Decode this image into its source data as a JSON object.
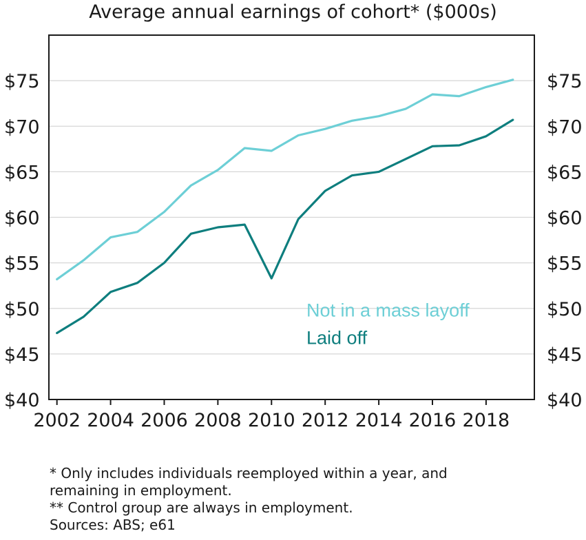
{
  "chart_data": {
    "type": "line",
    "title": "Average annual earnings of cohort* ($000s)",
    "xlabel": "",
    "ylabel": "",
    "x": [
      2002,
      2003,
      2004,
      2005,
      2006,
      2007,
      2008,
      2009,
      2010,
      2011,
      2012,
      2013,
      2014,
      2015,
      2016,
      2017,
      2018,
      2019
    ],
    "xlim": [
      2001.7,
      2019.8
    ],
    "ylim": [
      40,
      80
    ],
    "x_ticks": [
      {
        "value": 2002,
        "label": "2002"
      },
      {
        "value": 2004,
        "label": "2004"
      },
      {
        "value": 2006,
        "label": "2006"
      },
      {
        "value": 2008,
        "label": "2008"
      },
      {
        "value": 2010,
        "label": "2010"
      },
      {
        "value": 2012,
        "label": "2012"
      },
      {
        "value": 2014,
        "label": "2014"
      },
      {
        "value": 2016,
        "label": "2016"
      },
      {
        "value": 2018,
        "label": "2018"
      }
    ],
    "y_ticks": [
      {
        "value": 40,
        "label": "$40"
      },
      {
        "value": 45,
        "label": "$45"
      },
      {
        "value": 50,
        "label": "$50"
      },
      {
        "value": 55,
        "label": "$55"
      },
      {
        "value": 60,
        "label": "$60"
      },
      {
        "value": 65,
        "label": "$65"
      },
      {
        "value": 70,
        "label": "$70"
      },
      {
        "value": 75,
        "label": "$75"
      }
    ],
    "grid": true,
    "series": [
      {
        "name": "Not in a mass layoff",
        "color": "#6dcfd6",
        "label_anchor": {
          "x": 2003.5,
          "y": 49.1
        },
        "values": [
          53.2,
          55.3,
          57.8,
          58.4,
          60.6,
          63.5,
          65.2,
          67.6,
          67.3,
          69.0,
          69.7,
          70.6,
          71.1,
          71.9,
          73.5,
          73.3,
          74.3,
          75.1
        ]
      },
      {
        "name": "Laid off",
        "color": "#0e7e7e",
        "label_anchor": {
          "x": 2003.5,
          "y": 46.1
        },
        "values": [
          47.3,
          49.1,
          51.8,
          52.8,
          55.0,
          58.2,
          58.9,
          59.2,
          53.3,
          59.8,
          62.9,
          64.6,
          65.0,
          66.4,
          67.8,
          67.9,
          68.9,
          70.7
        ]
      }
    ]
  },
  "notes": {
    "line1": "* Only includes individuals reemployed within a year, and",
    "line2": "remaining in employment.",
    "line3": "** Control group are always in employment.",
    "line4": "Sources: ABS; e61"
  }
}
